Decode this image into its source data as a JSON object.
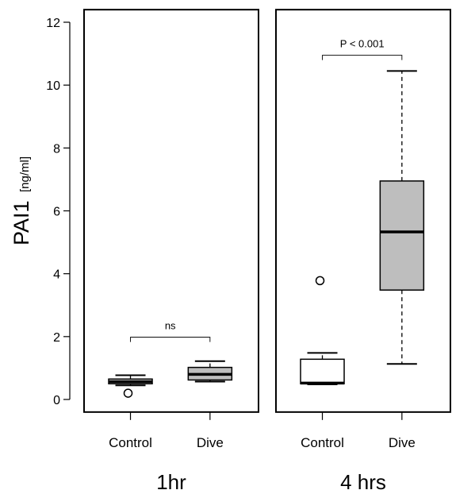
{
  "chart_data": {
    "type": "box",
    "ylabel": "PAI1",
    "ylabel_unit": "[ng/ml]",
    "ylim": [
      -0.4,
      12.4
    ],
    "yticks": [
      0,
      2,
      4,
      6,
      8,
      10,
      12
    ],
    "box_fill": {
      "Control": "#ffffff",
      "Dive": "#bebebe"
    },
    "panels": [
      {
        "label": "1hr",
        "categories": [
          "Control",
          "Dive"
        ],
        "boxes": [
          {
            "category": "Control",
            "whisker_low": 0.45,
            "q1": 0.5,
            "median": 0.57,
            "q3": 0.65,
            "whisker_high": 0.77,
            "outliers": [
              0.2
            ]
          },
          {
            "category": "Dive",
            "whisker_low": 0.57,
            "q1": 0.62,
            "median": 0.8,
            "q3": 1.02,
            "whisker_high": 1.22,
            "outliers": []
          }
        ],
        "annotation": "ns",
        "annotation_y": 1.98
      },
      {
        "label": "4 hrs",
        "categories": [
          "Control",
          "Dive"
        ],
        "boxes": [
          {
            "category": "Control",
            "whisker_low": 0.48,
            "q1": 0.5,
            "median": 0.52,
            "q3": 1.28,
            "whisker_high": 1.48,
            "outliers": [
              3.78
            ]
          },
          {
            "category": "Dive",
            "whisker_low": 1.13,
            "q1": 3.48,
            "median": 5.33,
            "q3": 6.95,
            "whisker_high": 10.45,
            "outliers": []
          }
        ],
        "annotation": "P < 0.001",
        "annotation_y": 10.95
      }
    ]
  }
}
